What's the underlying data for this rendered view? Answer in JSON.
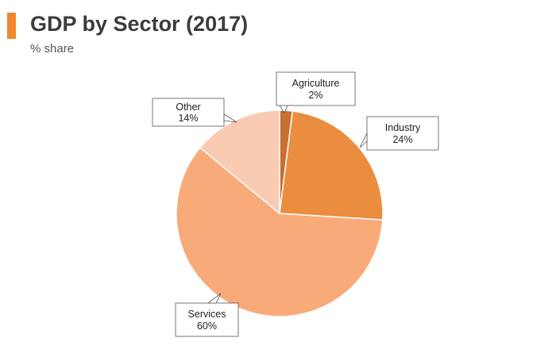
{
  "header": {
    "title": "GDP by Sector (2017)",
    "subtitle": "% share",
    "accent_color": "#f0862f"
  },
  "chart_data": {
    "type": "pie",
    "title": "GDP by Sector (2017)",
    "subtitle": "% share",
    "slices": [
      {
        "label": "Agriculture",
        "value": 2,
        "value_label": "2%",
        "color": "#c96f30"
      },
      {
        "label": "Industry",
        "value": 24,
        "value_label": "24%",
        "color": "#eb8d3f"
      },
      {
        "label": "Services",
        "value": 60,
        "value_label": "60%",
        "color": "#f8ab79"
      },
      {
        "label": "Other",
        "value": 14,
        "value_label": "14%",
        "color": "#f9cbb2"
      }
    ],
    "start_angle_deg": 0,
    "direction": "clockwise",
    "legend": "none",
    "data_labels": "callouts"
  }
}
